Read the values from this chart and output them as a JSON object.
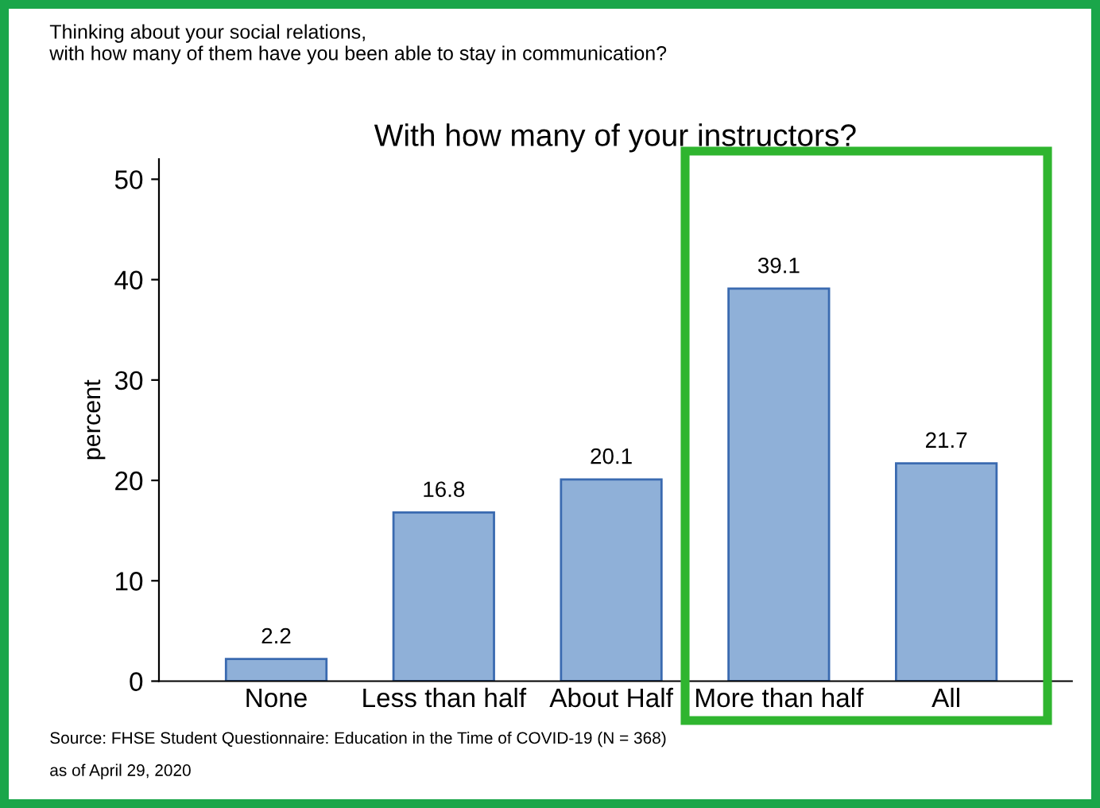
{
  "chart_data": {
    "type": "bar",
    "title": "With how many of your instructors?",
    "subtitle": "Thinking about your social relations,\nwith how many of them have you been able to stay in communication?",
    "ylabel": "percent",
    "categories": [
      "None",
      "Less than half",
      "About Half",
      "More than half",
      "All"
    ],
    "values": [
      2.2,
      16.8,
      20.1,
      39.1,
      21.7
    ],
    "color": "#8fb0d8",
    "data_labels": true,
    "ylim": [
      0,
      52
    ],
    "yticks": [
      0,
      10,
      20,
      30,
      40,
      50
    ],
    "grid": false,
    "annotations": [
      "Source: FHSE Student Questionnaire: Education in the Time of COVID-19 (N = 368)",
      "as of April 29, 2020"
    ]
  }
}
